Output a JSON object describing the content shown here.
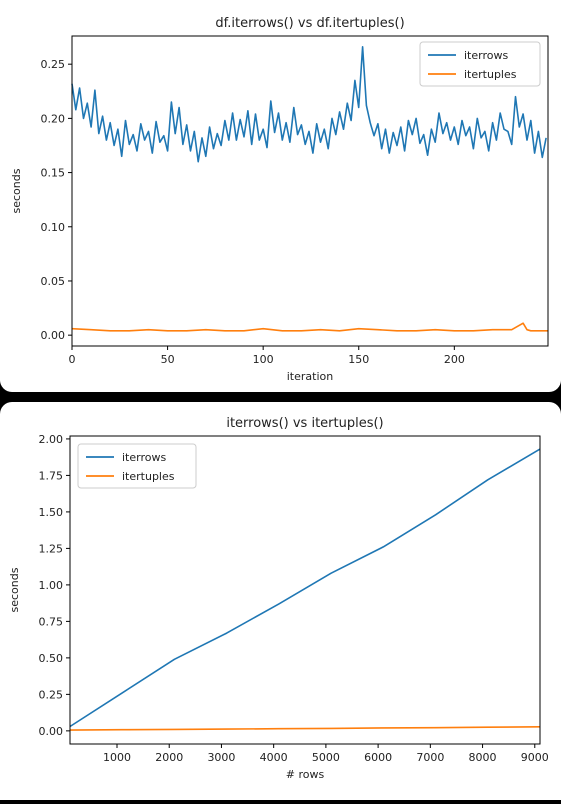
{
  "chart_data": [
    {
      "type": "line",
      "title": "df.iterrows() vs df.itertuples()",
      "xlabel": "iteration",
      "ylabel": "seconds",
      "xlim": [
        0,
        249
      ],
      "ylim": [
        -0.01,
        0.276
      ],
      "xticks": [
        0,
        50,
        100,
        150,
        200
      ],
      "yticks": [
        0.0,
        0.05,
        0.1,
        0.15,
        0.2,
        0.25
      ],
      "ytick_labels": [
        "0.00",
        "0.05",
        "0.10",
        "0.15",
        "0.20",
        "0.25"
      ],
      "legend": "top-right",
      "grid": false,
      "series": [
        {
          "name": "iterrows",
          "color": "#1f77b4",
          "x": [
            0,
            2,
            4,
            6,
            8,
            10,
            12,
            14,
            16,
            18,
            20,
            22,
            24,
            26,
            28,
            30,
            32,
            34,
            36,
            38,
            40,
            42,
            44,
            46,
            48,
            50,
            52,
            54,
            56,
            58,
            60,
            62,
            64,
            66,
            68,
            70,
            72,
            74,
            76,
            78,
            80,
            82,
            84,
            86,
            88,
            90,
            92,
            94,
            96,
            98,
            100,
            102,
            104,
            106,
            108,
            110,
            112,
            114,
            116,
            118,
            120,
            122,
            124,
            126,
            128,
            130,
            132,
            134,
            136,
            138,
            140,
            142,
            144,
            146,
            148,
            150,
            152,
            154,
            156,
            158,
            160,
            162,
            164,
            166,
            168,
            170,
            172,
            174,
            176,
            178,
            180,
            182,
            184,
            186,
            188,
            190,
            192,
            194,
            196,
            198,
            200,
            202,
            204,
            206,
            208,
            210,
            212,
            214,
            216,
            218,
            220,
            222,
            224,
            226,
            228,
            230,
            232,
            234,
            236,
            238,
            240,
            242,
            244,
            246,
            248
          ],
          "values": [
            0.232,
            0.208,
            0.228,
            0.2,
            0.214,
            0.192,
            0.226,
            0.186,
            0.202,
            0.18,
            0.196,
            0.175,
            0.19,
            0.165,
            0.198,
            0.176,
            0.185,
            0.17,
            0.195,
            0.18,
            0.188,
            0.168,
            0.197,
            0.178,
            0.184,
            0.17,
            0.215,
            0.186,
            0.21,
            0.176,
            0.194,
            0.17,
            0.188,
            0.16,
            0.182,
            0.165,
            0.192,
            0.172,
            0.186,
            0.175,
            0.198,
            0.18,
            0.205,
            0.18,
            0.199,
            0.183,
            0.207,
            0.176,
            0.204,
            0.18,
            0.19,
            0.173,
            0.216,
            0.187,
            0.205,
            0.18,
            0.196,
            0.178,
            0.21,
            0.185,
            0.194,
            0.176,
            0.188,
            0.168,
            0.195,
            0.178,
            0.19,
            0.172,
            0.2,
            0.185,
            0.206,
            0.19,
            0.214,
            0.198,
            0.235,
            0.21,
            0.266,
            0.212,
            0.196,
            0.184,
            0.195,
            0.172,
            0.19,
            0.168,
            0.187,
            0.175,
            0.192,
            0.17,
            0.198,
            0.185,
            0.2,
            0.177,
            0.185,
            0.166,
            0.19,
            0.178,
            0.205,
            0.186,
            0.196,
            0.18,
            0.192,
            0.176,
            0.198,
            0.184,
            0.192,
            0.172,
            0.2,
            0.182,
            0.188,
            0.17,
            0.196,
            0.18,
            0.205,
            0.19,
            0.188,
            0.176,
            0.22,
            0.192,
            0.204,
            0.18,
            0.198,
            0.168,
            0.188,
            0.164,
            0.182
          ]
        },
        {
          "name": "itertuples",
          "color": "#ff7f0e",
          "x": [
            0,
            10,
            20,
            30,
            40,
            50,
            60,
            70,
            80,
            90,
            100,
            110,
            120,
            130,
            140,
            150,
            160,
            170,
            180,
            190,
            200,
            210,
            220,
            230,
            236,
            238,
            240,
            249
          ],
          "values": [
            0.006,
            0.005,
            0.004,
            0.004,
            0.005,
            0.004,
            0.004,
            0.005,
            0.004,
            0.004,
            0.006,
            0.004,
            0.004,
            0.005,
            0.004,
            0.006,
            0.005,
            0.004,
            0.004,
            0.005,
            0.004,
            0.004,
            0.005,
            0.005,
            0.011,
            0.005,
            0.004,
            0.004
          ]
        }
      ]
    },
    {
      "type": "line",
      "title": "iterrows() vs itertuples()",
      "xlabel": "# rows",
      "ylabel": "seconds",
      "xlim": [
        100,
        9100
      ],
      "ylim": [
        -0.09,
        2.02
      ],
      "xticks": [
        1000,
        2000,
        3000,
        4000,
        5000,
        6000,
        7000,
        8000,
        9000
      ],
      "yticks": [
        0.0,
        0.25,
        0.5,
        0.75,
        1.0,
        1.25,
        1.5,
        1.75,
        2.0
      ],
      "ytick_labels": [
        "0.00",
        "0.25",
        "0.50",
        "0.75",
        "1.00",
        "1.25",
        "1.50",
        "1.75",
        "2.00"
      ],
      "legend": "top-left",
      "grid": false,
      "series": [
        {
          "name": "iterrows",
          "color": "#1f77b4",
          "x": [
            100,
            1100,
            2100,
            3100,
            4100,
            5100,
            6100,
            7100,
            8100,
            9100
          ],
          "values": [
            0.03,
            0.26,
            0.49,
            0.67,
            0.87,
            1.08,
            1.26,
            1.48,
            1.72,
            1.93
          ]
        },
        {
          "name": "itertuples",
          "color": "#ff7f0e",
          "x": [
            100,
            1100,
            2100,
            3100,
            4100,
            5100,
            6100,
            7100,
            8100,
            9100
          ],
          "values": [
            0.005,
            0.008,
            0.01,
            0.012,
            0.015,
            0.017,
            0.02,
            0.022,
            0.025,
            0.028
          ]
        }
      ]
    }
  ]
}
